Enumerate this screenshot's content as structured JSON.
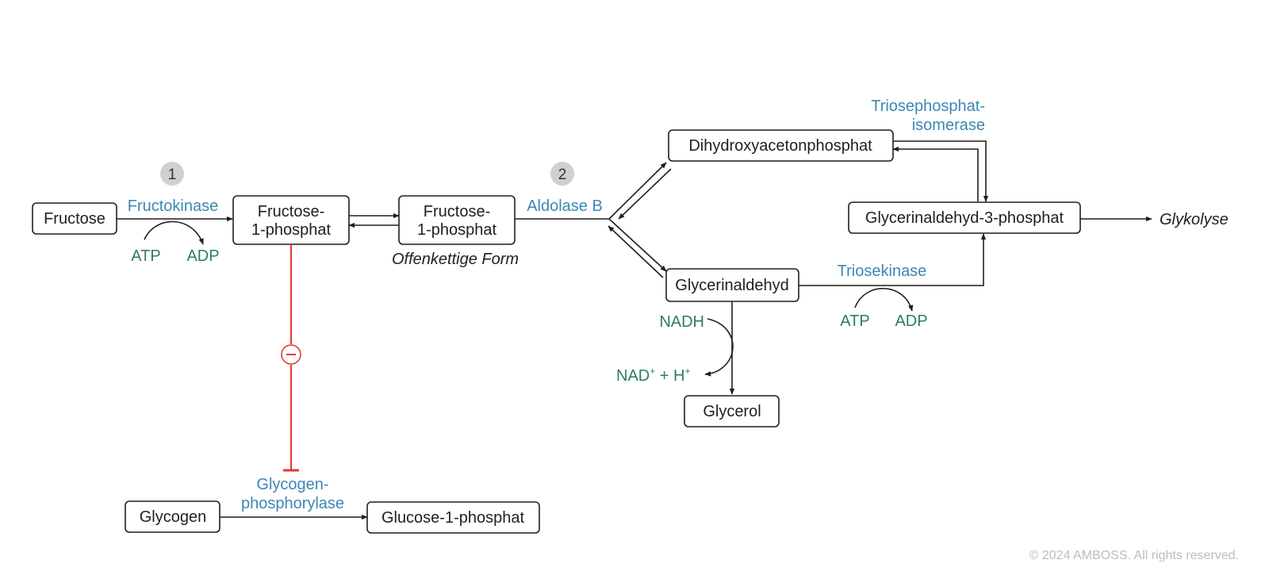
{
  "colors": {
    "node_border": "#1f1f1f",
    "enzyme": "#3d87b3",
    "cofactor": "#2e7d5b",
    "inhibition": "#e53935",
    "step_badge": "#d0d0d0",
    "copyright": "#bdbdbd"
  },
  "nodes": {
    "fructose": "Fructose",
    "f1p_line1": "Fructose-",
    "f1p_line2": "1-phosphat",
    "f1p_open_line1": "Fructose-",
    "f1p_open_line2": "1-phosphat",
    "open_chain_label": "Offenkettige Form",
    "dhap": "Dihydroxyacetonphosphat",
    "glyceraldehyde": "Glycerinaldehyd",
    "g3p": "Glycerinaldehyd-3-phosphat",
    "glycerol": "Glycerol",
    "glycogen": "Glycogen",
    "glucose1p": "Glucose-1-phosphat",
    "glycolysis": "Glykolyse"
  },
  "enzymes": {
    "fructokinase": "Fructokinase",
    "aldolase_b": "Aldolase B",
    "tpi_line1": "Triosephosphat-",
    "tpi_line2": "isomerase",
    "triosekinase": "Triosekinase",
    "gp_line1": "Glycogen-",
    "gp_line2": "phosphorylase"
  },
  "cofactors": {
    "atp_1": "ATP",
    "adp_1": "ADP",
    "atp_2": "ATP",
    "adp_2": "ADP",
    "nadh": "NADH",
    "nad_base": "NAD",
    "nad_plus_sup": "+",
    "nad_middle": " + H",
    "h_plus_sup": "+"
  },
  "steps": {
    "step1": "1",
    "step2": "2"
  },
  "inhibition_symbol": "−",
  "copyright": "© 2024 AMBOSS. All rights reserved."
}
